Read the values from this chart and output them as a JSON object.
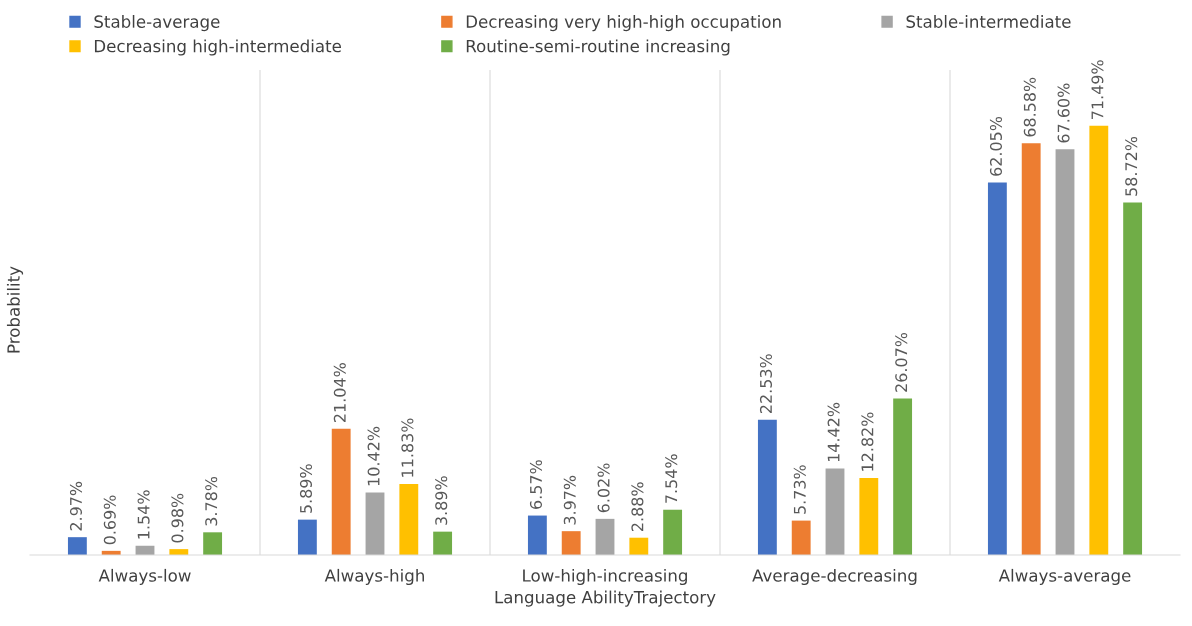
{
  "chart_data": {
    "type": "bar",
    "xlabel": "Language AbilityTrajectory",
    "ylabel": "Probability",
    "categories": [
      "Always-low",
      "Always-high",
      "Low-high-increasing",
      "Average-decreasing",
      "Always-average"
    ],
    "series": [
      {
        "name": "Stable-average",
        "color": "#4472c4",
        "values": [
          2.97,
          5.89,
          6.57,
          22.53,
          62.05
        ],
        "value_labels": [
          "2.97%",
          "5.89%",
          "6.57%",
          "22.53%",
          "62.05%"
        ]
      },
      {
        "name": "Decreasing very high-high occupation",
        "color": "#ed7d31",
        "values": [
          0.69,
          21.04,
          3.97,
          5.73,
          68.58
        ],
        "value_labels": [
          "0.69%",
          "21.04%",
          "3.97%",
          "5.73%",
          "68.58%"
        ]
      },
      {
        "name": "Stable-intermediate",
        "color": "#a5a5a5",
        "values": [
          1.54,
          10.42,
          6.02,
          14.42,
          67.6
        ],
        "value_labels": [
          "1.54%",
          "10.42%",
          "6.02%",
          "14.42%",
          "67.60%"
        ]
      },
      {
        "name": "Decreasing high-intermediate",
        "color": "#ffc000",
        "values": [
          0.98,
          11.83,
          2.88,
          12.82,
          71.49
        ],
        "value_labels": [
          "0.98%",
          "11.83%",
          "2.88%",
          "12.82%",
          "71.49%"
        ]
      },
      {
        "name": "Routine-semi-routine increasing",
        "color": "#70ad47",
        "values": [
          3.78,
          3.89,
          7.54,
          26.07,
          58.72
        ],
        "value_labels": [
          "3.78%",
          "3.89%",
          "7.54%",
          "26.07%",
          "58.72%"
        ]
      }
    ],
    "grid": "x",
    "legend": "top",
    "tick_labels": "x"
  }
}
